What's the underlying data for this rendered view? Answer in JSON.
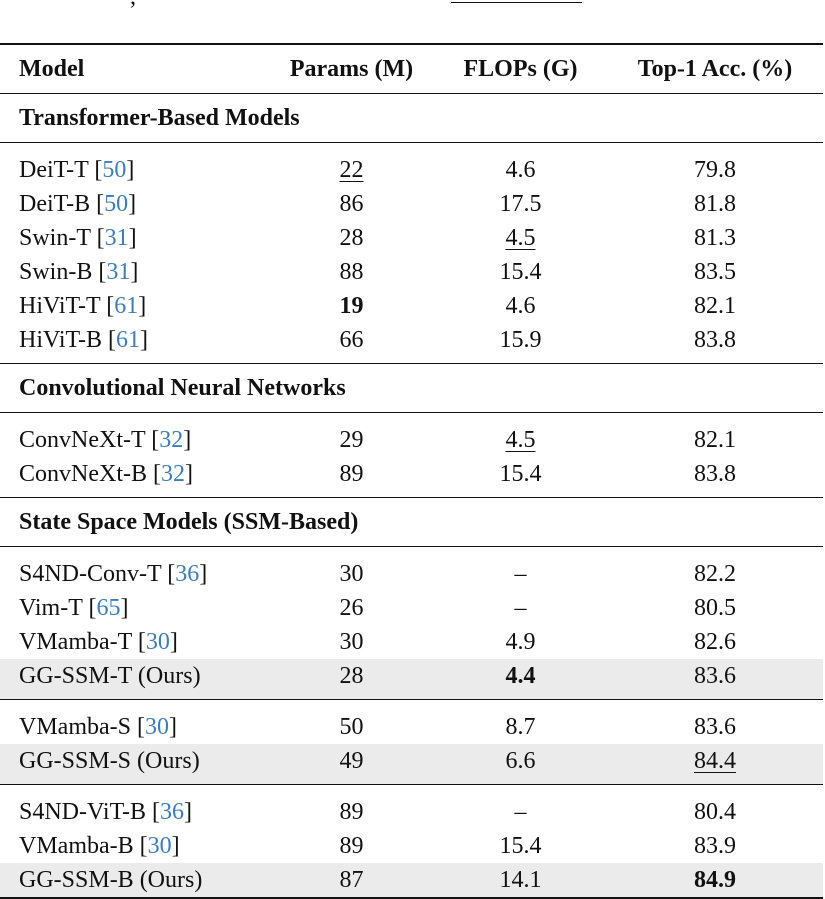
{
  "table": {
    "headers": {
      "model": "Model",
      "params": "Params (M)",
      "flops": "FLOPs (G)",
      "acc": "Top-1 Acc. (%)"
    },
    "sections": [
      {
        "title": "Transformer-Based Models",
        "groups": [
          [
            {
              "name": "DeiT-T",
              "cite": "50",
              "params": "22",
              "flops": "4.6",
              "acc": "79.8",
              "params_style": "underline"
            },
            {
              "name": "DeiT-B",
              "cite": "50",
              "params": "86",
              "flops": "17.5",
              "acc": "81.8"
            },
            {
              "name": "Swin-T",
              "cite": "31",
              "params": "28",
              "flops": "4.5",
              "acc": "81.3",
              "flops_style": "underline"
            },
            {
              "name": "Swin-B",
              "cite": "31",
              "params": "88",
              "flops": "15.4",
              "acc": "83.5"
            },
            {
              "name": "HiViT-T",
              "cite": "61",
              "params": "19",
              "flops": "4.6",
              "acc": "82.1",
              "params_style": "bold"
            },
            {
              "name": "HiViT-B",
              "cite": "61",
              "params": "66",
              "flops": "15.9",
              "acc": "83.8"
            }
          ]
        ]
      },
      {
        "title": "Convolutional Neural Networks",
        "groups": [
          [
            {
              "name": "ConvNeXt-T",
              "cite": "32",
              "params": "29",
              "flops": "4.5",
              "acc": "82.1",
              "flops_style": "underline"
            },
            {
              "name": "ConvNeXt-B",
              "cite": "32",
              "params": "89",
              "flops": "15.4",
              "acc": "83.8"
            }
          ]
        ]
      },
      {
        "title": "State Space Models (SSM-Based)",
        "groups": [
          [
            {
              "name": "S4ND-Conv-T",
              "cite": "36",
              "params": "30",
              "flops": "–",
              "acc": "82.2"
            },
            {
              "name": "Vim-T",
              "cite": "65",
              "params": "26",
              "flops": "–",
              "acc": "80.5"
            },
            {
              "name": "VMamba-T",
              "cite": "30",
              "params": "30",
              "flops": "4.9",
              "acc": "82.6"
            },
            {
              "name": "GG-SSM-T (Ours)",
              "params": "28",
              "flops": "4.4",
              "acc": "83.6",
              "flops_style": "bold",
              "highlight": true
            }
          ],
          [
            {
              "name": "VMamba-S",
              "cite": "30",
              "params": "50",
              "flops": "8.7",
              "acc": "83.6"
            },
            {
              "name": "GG-SSM-S (Ours)",
              "params": "49",
              "flops": "6.6",
              "acc": "84.4",
              "acc_style": "underline",
              "highlight": true
            }
          ],
          [
            {
              "name": "S4ND-ViT-B",
              "cite": "36",
              "params": "89",
              "flops": "–",
              "acc": "80.4"
            },
            {
              "name": "VMamba-B",
              "cite": "30",
              "params": "89",
              "flops": "15.4",
              "acc": "83.9"
            },
            {
              "name": "GG-SSM-B (Ours)",
              "params": "87",
              "flops": "14.1",
              "acc": "84.9",
              "acc_style": "bold",
              "highlight": true
            }
          ]
        ]
      }
    ]
  }
}
